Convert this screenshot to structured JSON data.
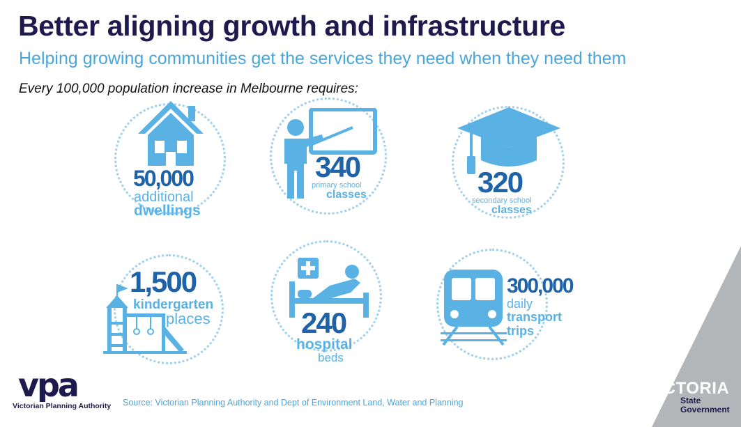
{
  "header": {
    "title": "Better aligning growth and infrastructure",
    "subtitle": "Helping growing communities get the services they need when they need them",
    "intro": "Every 100,000 population increase in Melbourne requires:"
  },
  "stats": {
    "dwellings": {
      "value": "50,000",
      "line1": "additional",
      "line2": "dwellings",
      "icon": "house-icon"
    },
    "primary": {
      "value": "340",
      "line1": "primary school",
      "line2": "classes",
      "icon": "teacher-icon"
    },
    "secondary": {
      "value": "320",
      "line1": "secondary school",
      "line2": "classes",
      "icon": "graduation-cap-icon"
    },
    "kinder": {
      "value": "1,500",
      "line1": "kindergarten",
      "line2": "places",
      "icon": "playground-icon"
    },
    "hospital": {
      "value": "240",
      "line1": "hospital",
      "line2": "beds",
      "icon": "hospital-bed-icon"
    },
    "transport": {
      "value": "300,000",
      "line1": "daily",
      "line2": "transport",
      "line3": "trips",
      "icon": "train-icon"
    }
  },
  "footer": {
    "vpa_logo_text": "vpa",
    "vpa_name": "Victorian Planning Authority",
    "source": "Source: Victorian Planning Authority and Dept of Environment Land, Water and Planning",
    "vic_word": "VICTORIA",
    "vic_line1": "State",
    "vic_line2": "Government"
  },
  "colors": {
    "title": "#1e1a4d",
    "accent": "#4aa6d9",
    "icon": "#5ab1e3",
    "number": "#1e62a8",
    "triangle": "#b3b6b8"
  }
}
